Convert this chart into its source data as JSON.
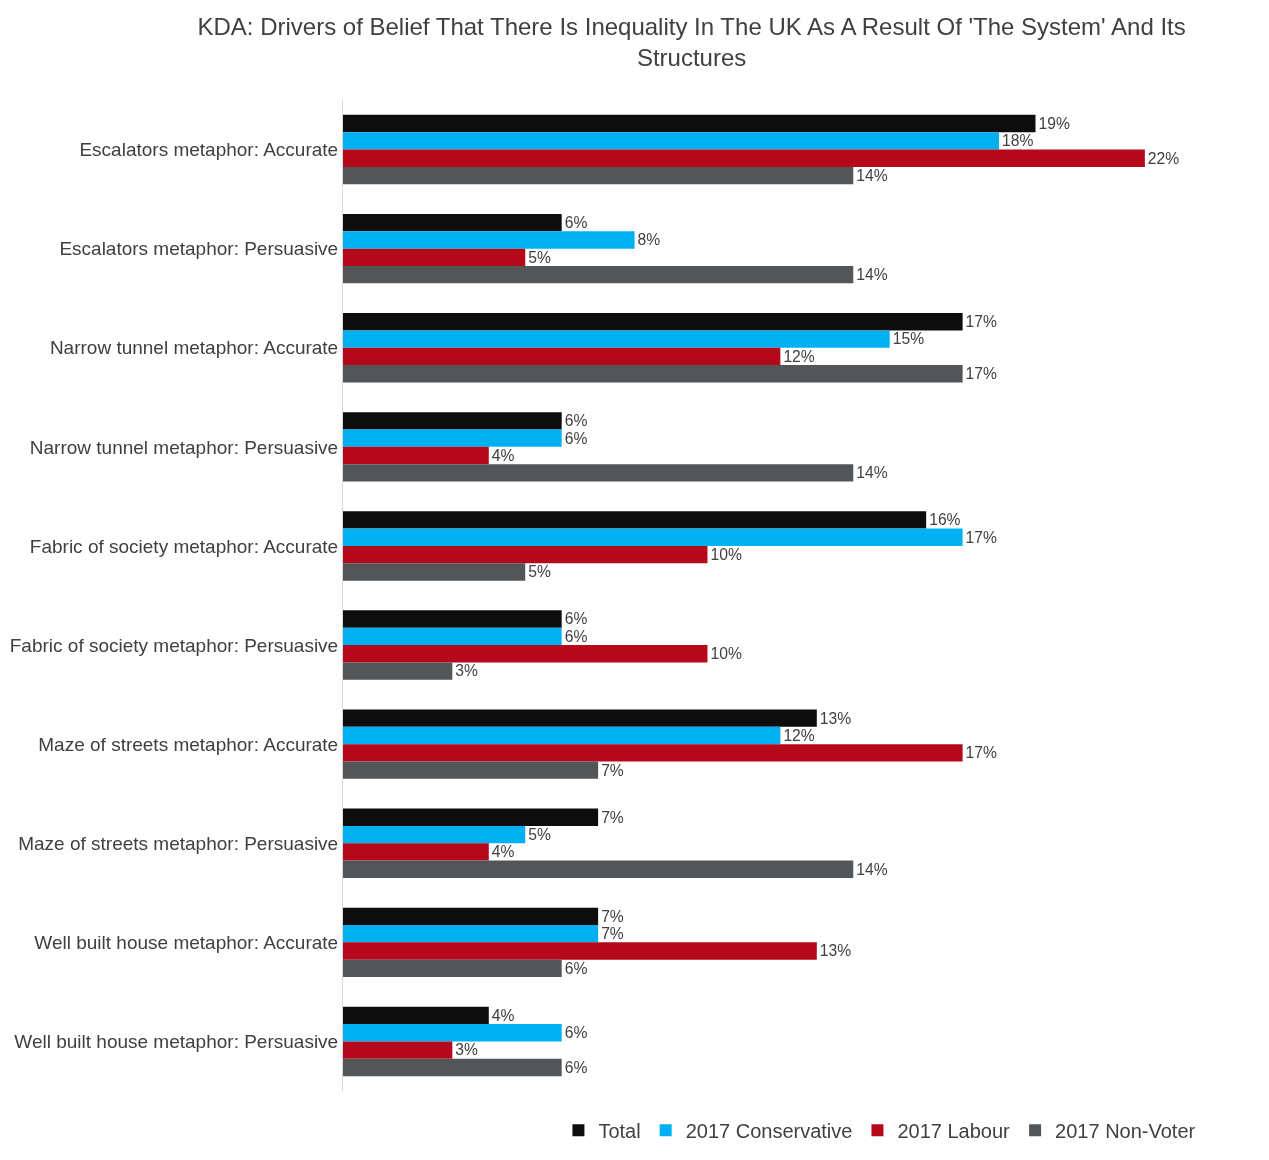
{
  "chart_data": {
    "type": "bar",
    "orientation": "horizontal",
    "title": "KDA: Drivers of Belief That There Is Inequality In The UK As A Result Of 'The System' And Its Structures",
    "categories": [
      "Escalators metaphor: Accurate",
      "Escalators metaphor: Persuasive",
      "Narrow tunnel metaphor: Accurate",
      "Narrow tunnel metaphor: Persuasive",
      "Fabric of society metaphor: Accurate",
      "Fabric of society metaphor: Persuasive",
      "Maze of streets metaphor: Accurate",
      "Maze of streets metaphor: Persuasive",
      "Well built house metaphor: Accurate",
      "Well built house metaphor: Persuasive"
    ],
    "series": [
      {
        "name": "Total",
        "color": "#0d0d0d",
        "values": [
          19,
          6,
          17,
          6,
          16,
          6,
          13,
          7,
          7,
          4
        ],
        "value_labels": [
          "19%",
          "6%",
          "17%",
          "6%",
          "16%",
          "6%",
          "13%",
          "7%",
          "7%",
          "4%"
        ]
      },
      {
        "name": "2017 Conservative",
        "color": "#00b0f0",
        "values": [
          18,
          8,
          15,
          6,
          17,
          6,
          12,
          5,
          7,
          6
        ],
        "value_labels": [
          "18%",
          "8%",
          "15%",
          "6%",
          "17%",
          "6%",
          "12%",
          "5%",
          "7%",
          "6%"
        ]
      },
      {
        "name": "2017 Labour",
        "color": "#b5081a",
        "values": [
          22,
          5,
          12,
          4,
          10,
          10,
          17,
          4,
          13,
          3
        ],
        "value_labels": [
          "22%",
          "5%",
          "12%",
          "4%",
          "10%",
          "10%",
          "17%",
          "4%",
          "13%",
          "3%"
        ]
      },
      {
        "name": "2017 Non-Voter",
        "color": "#525659",
        "values": [
          14,
          14,
          17,
          14,
          5,
          3,
          7,
          14,
          6,
          6
        ],
        "value_labels": [
          "14%",
          "14%",
          "17%",
          "14%",
          "5%",
          "3%",
          "7%",
          "14%",
          "6%",
          "6%"
        ]
      }
    ],
    "legend": "bottom",
    "tick_labels": "y"
  }
}
